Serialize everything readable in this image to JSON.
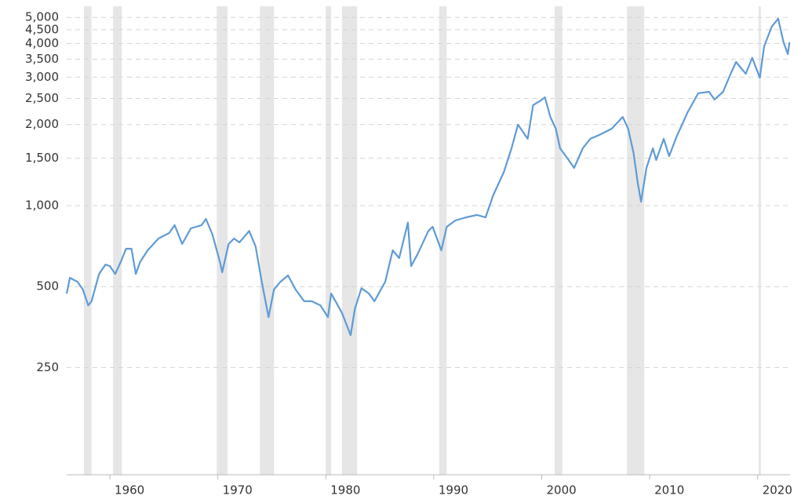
{
  "chart_data": {
    "type": "line",
    "log_scale": true,
    "grid": true,
    "color": "#5f9bd6",
    "band_color": "#e6e6e6",
    "xlim": [
      1956,
      2023
    ],
    "xticks": [
      1960,
      1970,
      1980,
      1990,
      2000,
      2010,
      2020
    ],
    "ylim": [
      100,
      5500
    ],
    "yticks": [
      {
        "value": 5000,
        "label": "5,000"
      },
      {
        "value": 4500,
        "label": "4,500"
      },
      {
        "value": 4000,
        "label": "4,000"
      },
      {
        "value": 3500,
        "label": "3,500"
      },
      {
        "value": 3000,
        "label": "3,000"
      },
      {
        "value": 2500,
        "label": "2,500"
      },
      {
        "value": 2000,
        "label": "2,000"
      },
      {
        "value": 1500,
        "label": "1,500"
      },
      {
        "value": 1000,
        "label": "1,000"
      },
      500,
      250
    ],
    "recession_bands": [
      [
        1957.6,
        1958.3
      ],
      [
        1960.3,
        1961.1
      ],
      [
        1969.9,
        1970.9
      ],
      [
        1973.9,
        1975.2
      ],
      [
        1980.0,
        1980.5
      ],
      [
        1981.5,
        1982.9
      ],
      [
        1990.5,
        1991.2
      ],
      [
        2001.2,
        2001.9
      ],
      [
        2007.9,
        2009.5
      ],
      [
        2020.1,
        2020.3
      ]
    ],
    "x": [
      1956.0,
      1956.3,
      1957.0,
      1957.5,
      1958.0,
      1958.3,
      1959.0,
      1959.6,
      1960.0,
      1960.5,
      1961.0,
      1961.5,
      1962.0,
      1962.4,
      1962.8,
      1963.5,
      1964.5,
      1965.5,
      1966.0,
      1966.7,
      1967.5,
      1968.5,
      1968.9,
      1969.5,
      1970.2,
      1970.4,
      1971.0,
      1971.5,
      1972.0,
      1972.9,
      1973.5,
      1974.0,
      1974.7,
      1975.2,
      1975.8,
      1976.5,
      1977.2,
      1978.0,
      1978.7,
      1979.5,
      1980.2,
      1980.5,
      1980.9,
      1981.5,
      1982.3,
      1982.7,
      1983.3,
      1984.0,
      1984.5,
      1985.5,
      1986.2,
      1986.8,
      1987.6,
      1987.9,
      1988.5,
      1989.5,
      1989.9,
      1990.7,
      1991.2,
      1992.0,
      1993.0,
      1994.0,
      1994.8,
      1995.5,
      1996.5,
      1997.2,
      1997.8,
      1998.7,
      1999.2,
      1999.8,
      2000.3,
      2000.8,
      2001.3,
      2001.7,
      2002.5,
      2003.0,
      2003.8,
      2004.5,
      2005.5,
      2006.5,
      2007.5,
      2008.0,
      2008.5,
      2008.9,
      2009.2,
      2009.7,
      2010.3,
      2010.6,
      2011.3,
      2011.8,
      2012.5,
      2013.5,
      2014.5,
      2015.5,
      2016.0,
      2016.8,
      2017.5,
      2018.0,
      2018.9,
      2019.5,
      2020.2,
      2020.6,
      2021.3,
      2021.9,
      2022.4,
      2022.8,
      2022.95
    ],
    "values": [
      471,
      539,
      521,
      488,
      426,
      441,
      557,
      604,
      596,
      557,
      617,
      691,
      691,
      557,
      617,
      682,
      754,
      791,
      846,
      720,
      823,
      846,
      892,
      780,
      617,
      565,
      720,
      754,
      730,
      805,
      705,
      539,
      385,
      488,
      521,
      550,
      488,
      441,
      441,
      426,
      385,
      471,
      441,
      399,
      330,
      414,
      493,
      471,
      441,
      521,
      682,
      638,
      865,
      596,
      659,
      805,
      834,
      682,
      834,
      880,
      904,
      923,
      904,
      1091,
      1334,
      1632,
      1997,
      1770,
      2360,
      2440,
      2525,
      2135,
      1931,
      1632,
      1476,
      1380,
      1632,
      1770,
      1843,
      1931,
      2135,
      1931,
      1571,
      1207,
      1034,
      1380,
      1632,
      1476,
      1770,
      1526,
      1806,
      2217,
      2615,
      2646,
      2478,
      2646,
      3087,
      3415,
      3087,
      3540,
      2986,
      3903,
      4617,
      4945,
      4043,
      3654,
      4043
    ]
  }
}
